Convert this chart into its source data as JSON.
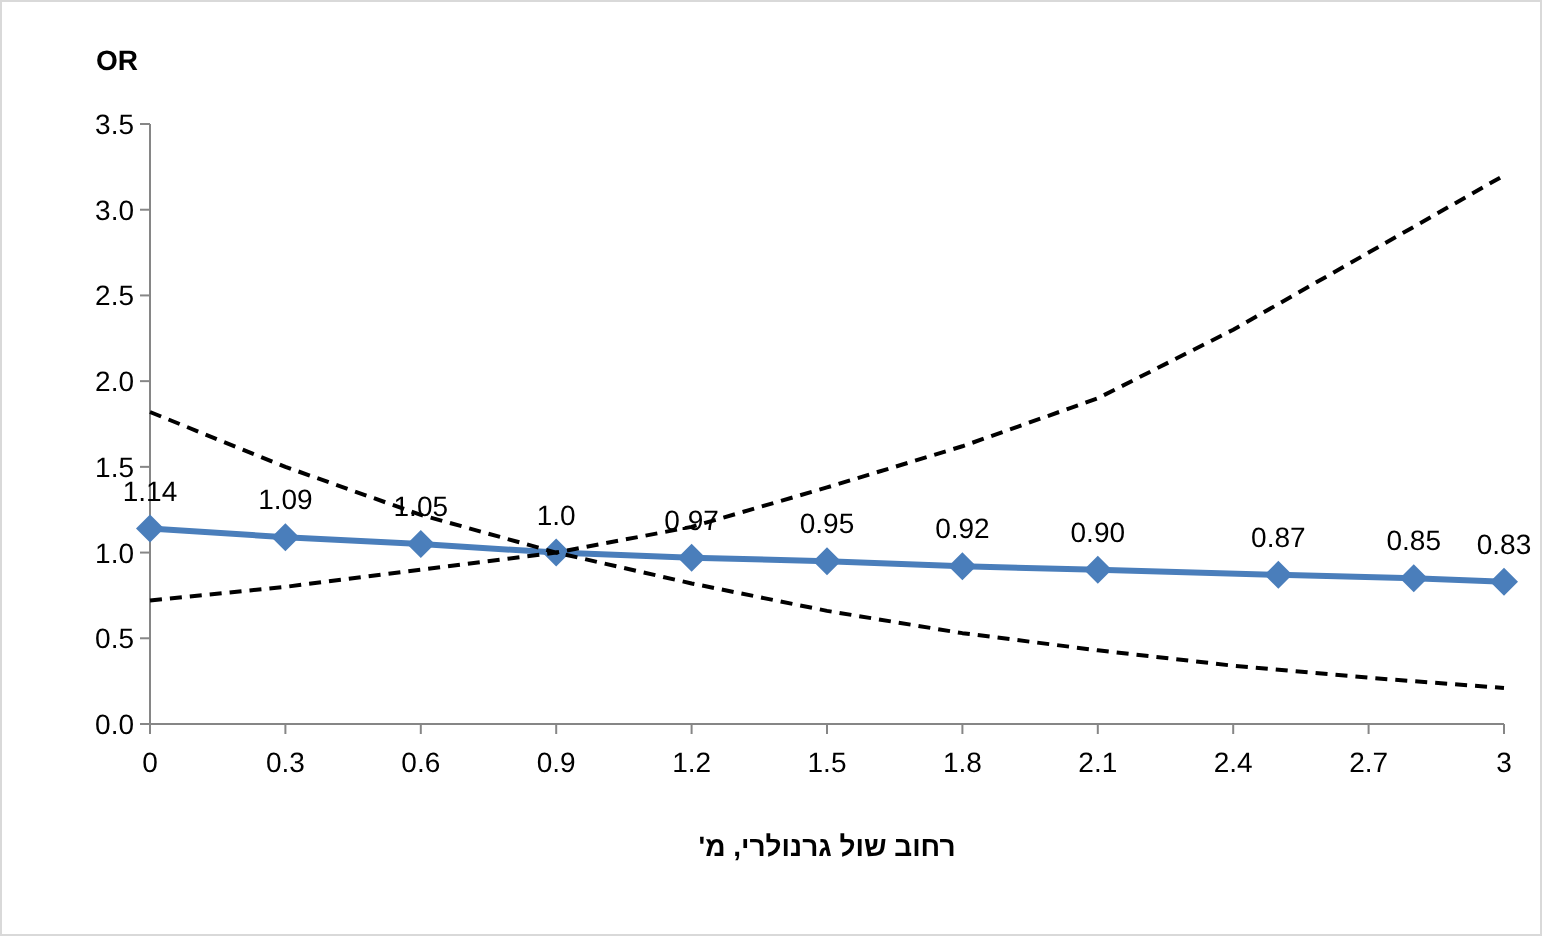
{
  "chart_data": {
    "type": "line",
    "ylabel": "OR",
    "xlabel": "רחוב שול גרנולרי, מ'",
    "xlim": [
      0,
      3
    ],
    "xticks": [
      0,
      0.3,
      0.6,
      0.9,
      1.2,
      1.5,
      1.8,
      2.1,
      2.4,
      2.7,
      3
    ],
    "ylim": [
      0,
      3.5
    ],
    "yticks": [
      {
        "value": 0,
        "label": "0.0"
      },
      {
        "value": 0.5,
        "label": "0.5"
      },
      {
        "value": 1,
        "label": "1.0"
      },
      {
        "value": 1.5,
        "label": "1.5"
      },
      {
        "value": 2,
        "label": "2.0"
      },
      {
        "value": 2.5,
        "label": "2.5"
      },
      {
        "value": 3,
        "label": "3.0"
      },
      {
        "value": 3.5,
        "label": "3.5"
      }
    ],
    "series": [
      {
        "color": "#4a7ebb",
        "marker": "diamond",
        "line_style": "solid",
        "x": [
          0,
          0.3,
          0.6,
          0.9,
          1.2,
          1.5,
          1.8,
          2.1,
          2.5,
          2.8,
          3
        ],
        "values": [
          1.14,
          1.09,
          1.05,
          1.0,
          0.97,
          0.95,
          0.92,
          0.9,
          0.87,
          0.85,
          0.83
        ],
        "value_labels": [
          "1.14",
          "1.09",
          "1.05",
          "1.0",
          "0.97",
          "0.95",
          "0.92",
          "0.90",
          "0.87",
          "0.85",
          "0.83"
        ]
      },
      {
        "color": "#000000",
        "marker": "none",
        "line_style": "dashed",
        "x": [
          0,
          0.3,
          0.6,
          0.9,
          1.2,
          1.5,
          1.8,
          2.1,
          2.4,
          2.7,
          3
        ],
        "values": [
          0.72,
          0.8,
          0.9,
          1.0,
          1.15,
          1.38,
          1.62,
          1.9,
          2.3,
          2.75,
          3.2
        ]
      },
      {
        "color": "#000000",
        "marker": "none",
        "line_style": "dashed",
        "x": [
          0,
          0.3,
          0.6,
          0.9,
          1.2,
          1.5,
          1.8,
          2.1,
          2.4,
          2.7,
          3
        ],
        "values": [
          1.82,
          1.5,
          1.22,
          1.0,
          0.82,
          0.66,
          0.53,
          0.43,
          0.34,
          0.27,
          0.21
        ]
      }
    ]
  }
}
